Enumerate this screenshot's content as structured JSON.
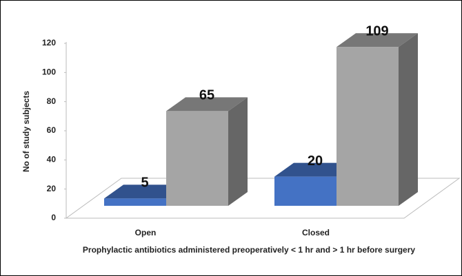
{
  "chart_data": {
    "type": "bar3d",
    "categories": [
      "Open",
      "Closed"
    ],
    "series": [
      {
        "color": "#4472c4",
        "values": [
          5,
          20
        ]
      },
      {
        "color": "#a5a5a5",
        "values": [
          65,
          109
        ]
      }
    ],
    "ylim": [
      0,
      120
    ],
    "yticks": [
      0,
      20,
      40,
      60,
      80,
      100,
      120
    ],
    "y_label": "No of study subjects",
    "x_label": "Prophylactic antibiotics administered preoperatively < 1 hr and > 1 hr before surgery"
  }
}
